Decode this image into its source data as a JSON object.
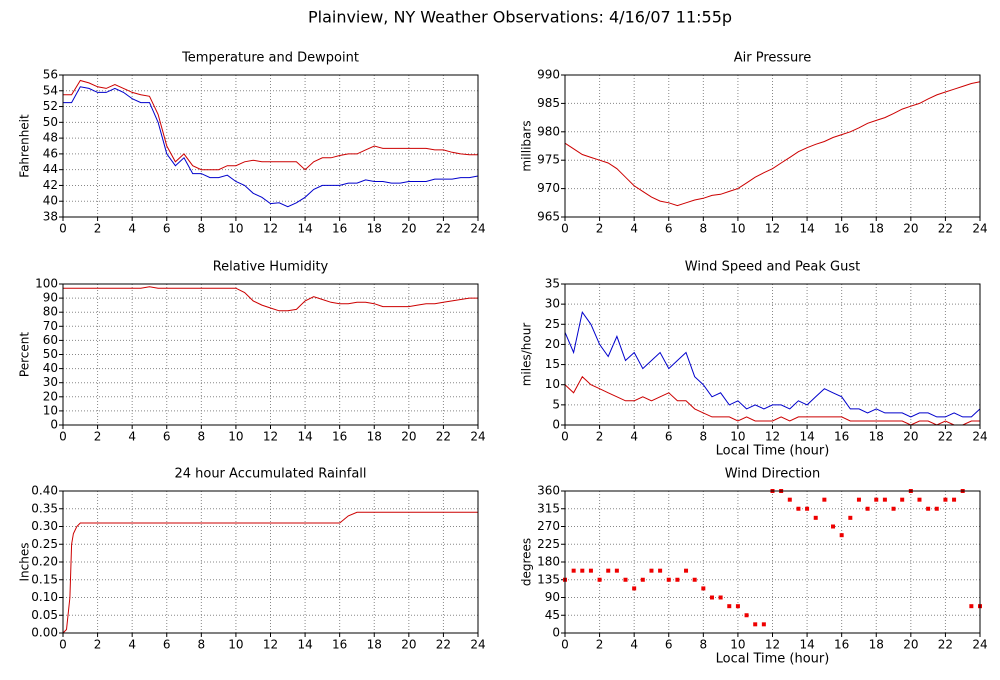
{
  "title": "Plainview, NY Weather Observations: 4/16/07 11:55p",
  "chart_data": [
    {
      "type": "line",
      "title": "Temperature and Dewpoint",
      "ylabel": "Fahrenheit",
      "x": [
        0,
        0.5,
        1,
        1.5,
        2,
        2.5,
        3,
        3.5,
        4,
        4.5,
        5,
        5.5,
        6,
        6.5,
        7,
        7.5,
        8,
        8.5,
        9,
        9.5,
        10,
        10.5,
        11,
        11.5,
        12,
        12.5,
        13,
        13.5,
        14,
        14.5,
        15,
        15.5,
        16,
        16.5,
        17,
        17.5,
        18,
        18.5,
        19,
        19.5,
        20,
        20.5,
        21,
        21.5,
        22,
        22.5,
        23,
        23.5,
        24
      ],
      "series": [
        {
          "color": "#cc0000",
          "values": [
            53.5,
            53.5,
            55.3,
            55,
            54.5,
            54.3,
            54.8,
            54.3,
            53.8,
            53.5,
            53.3,
            51,
            47,
            45,
            46,
            44.5,
            44,
            44,
            44,
            44.5,
            44.5,
            45,
            45.2,
            45,
            45,
            45,
            45,
            45,
            44,
            45,
            45.5,
            45.5,
            45.8,
            46,
            46,
            46.5,
            47,
            46.7,
            46.7,
            46.7,
            46.7,
            46.7,
            46.7,
            46.5,
            46.5,
            46.2,
            46,
            45.9,
            45.9
          ]
        },
        {
          "color": "#0000cc",
          "values": [
            52.5,
            52.5,
            54.5,
            54.3,
            53.8,
            53.8,
            54.3,
            53.8,
            53,
            52.5,
            52.5,
            50,
            46,
            44.5,
            45.5,
            43.5,
            43.5,
            43,
            43,
            43.3,
            42.5,
            42,
            41,
            40.5,
            39.7,
            39.8,
            39.3,
            39.8,
            40.5,
            41.5,
            42,
            42,
            42,
            42.3,
            42.3,
            42.7,
            42.5,
            42.5,
            42.3,
            42.3,
            42.5,
            42.5,
            42.5,
            42.8,
            42.8,
            42.8,
            43,
            43,
            43.2
          ]
        }
      ],
      "xlim": [
        0,
        24
      ],
      "xticks": [
        0,
        2,
        4,
        6,
        8,
        10,
        12,
        14,
        16,
        18,
        20,
        22,
        24
      ],
      "ylim": [
        38,
        56
      ],
      "yticks": [
        38,
        40,
        42,
        44,
        46,
        48,
        50,
        52,
        54,
        56
      ],
      "grid": true
    },
    {
      "type": "line",
      "title": "Air Pressure",
      "ylabel": "millibars",
      "x": [
        0,
        0.5,
        1,
        1.5,
        2,
        2.5,
        3,
        3.5,
        4,
        4.5,
        5,
        5.5,
        6,
        6.5,
        7,
        7.5,
        8,
        8.5,
        9,
        9.5,
        10,
        10.5,
        11,
        11.5,
        12,
        12.5,
        13,
        13.5,
        14,
        14.5,
        15,
        15.5,
        16,
        16.5,
        17,
        17.5,
        18,
        18.5,
        19,
        19.5,
        20,
        20.5,
        21,
        21.5,
        22,
        22.5,
        23,
        23.5,
        24
      ],
      "series": [
        {
          "color": "#cc0000",
          "values": [
            978,
            977,
            976,
            975.5,
            975,
            974.5,
            973.5,
            972,
            970.5,
            969.5,
            968.5,
            967.8,
            967.5,
            967,
            967.5,
            968,
            968.3,
            968.8,
            969,
            969.5,
            970,
            971,
            972,
            972.8,
            973.5,
            974.5,
            975.5,
            976.5,
            977.2,
            977.8,
            978.3,
            979,
            979.5,
            980,
            980.7,
            981.5,
            982,
            982.5,
            983.2,
            984,
            984.5,
            985,
            985.8,
            986.5,
            987,
            987.5,
            988,
            988.5,
            988.8
          ]
        }
      ],
      "xlim": [
        0,
        24
      ],
      "xticks": [
        0,
        2,
        4,
        6,
        8,
        10,
        12,
        14,
        16,
        18,
        20,
        22,
        24
      ],
      "ylim": [
        965,
        990
      ],
      "yticks": [
        965,
        970,
        975,
        980,
        985,
        990
      ],
      "grid": true
    },
    {
      "type": "line",
      "title": "Relative Humidity",
      "ylabel": "Percent",
      "x": [
        0,
        0.5,
        1,
        1.5,
        2,
        2.5,
        3,
        3.5,
        4,
        4.5,
        5,
        5.5,
        6,
        6.5,
        7,
        7.5,
        8,
        8.5,
        9,
        9.5,
        10,
        10.5,
        11,
        11.5,
        12,
        12.5,
        13,
        13.5,
        14,
        14.5,
        15,
        15.5,
        16,
        16.5,
        17,
        17.5,
        18,
        18.5,
        19,
        19.5,
        20,
        20.5,
        21,
        21.5,
        22,
        22.5,
        23,
        23.5,
        24
      ],
      "series": [
        {
          "color": "#cc0000",
          "values": [
            97,
            97,
            97,
            97,
            97,
            97,
            97,
            97,
            97,
            97,
            98,
            97,
            97,
            97,
            97,
            97,
            97,
            97,
            97,
            97,
            97,
            94,
            88,
            85,
            83,
            81,
            81,
            82,
            88,
            91,
            89,
            87,
            86,
            86,
            87,
            87,
            86,
            84,
            84,
            84,
            84,
            85,
            86,
            86,
            87,
            88,
            89,
            90,
            90
          ]
        }
      ],
      "xlim": [
        0,
        24
      ],
      "xticks": [
        0,
        2,
        4,
        6,
        8,
        10,
        12,
        14,
        16,
        18,
        20,
        22,
        24
      ],
      "ylim": [
        0,
        100
      ],
      "yticks": [
        0,
        10,
        20,
        30,
        40,
        50,
        60,
        70,
        80,
        90,
        100
      ],
      "grid": true
    },
    {
      "type": "line",
      "title": "Wind Speed and Peak Gust",
      "ylabel": "miles/hour",
      "xlabel": "Local Time (hour)",
      "x": [
        0,
        0.5,
        1,
        1.5,
        2,
        2.5,
        3,
        3.5,
        4,
        4.5,
        5,
        5.5,
        6,
        6.5,
        7,
        7.5,
        8,
        8.5,
        9,
        9.5,
        10,
        10.5,
        11,
        11.5,
        12,
        12.5,
        13,
        13.5,
        14,
        14.5,
        15,
        15.5,
        16,
        16.5,
        17,
        17.5,
        18,
        18.5,
        19,
        19.5,
        20,
        20.5,
        21,
        21.5,
        22,
        22.5,
        23,
        23.5,
        24
      ],
      "series": [
        {
          "color": "#0000cc",
          "values": [
            23,
            18,
            28,
            25,
            20,
            17,
            22,
            16,
            18,
            14,
            16,
            18,
            14,
            16,
            18,
            12,
            10,
            7,
            8,
            5,
            6,
            4,
            5,
            4,
            5,
            5,
            4,
            6,
            5,
            7,
            9,
            8,
            7,
            4,
            4,
            3,
            4,
            3,
            3,
            3,
            2,
            3,
            3,
            2,
            2,
            3,
            2,
            2,
            4
          ]
        },
        {
          "color": "#cc0000",
          "values": [
            10,
            8,
            12,
            10,
            9,
            8,
            7,
            6,
            6,
            7,
            6,
            7,
            8,
            6,
            6,
            4,
            3,
            2,
            2,
            2,
            1,
            2,
            1,
            1,
            1,
            2,
            1,
            2,
            2,
            2,
            2,
            2,
            2,
            1,
            1,
            1,
            1,
            1,
            1,
            1,
            0,
            1,
            1,
            0,
            1,
            0,
            0,
            1,
            1
          ]
        }
      ],
      "xlim": [
        0,
        24
      ],
      "xticks": [
        0,
        2,
        4,
        6,
        8,
        10,
        12,
        14,
        16,
        18,
        20,
        22,
        24
      ],
      "ylim": [
        0,
        35
      ],
      "yticks": [
        0,
        5,
        10,
        15,
        20,
        25,
        30,
        35
      ],
      "grid": true
    },
    {
      "type": "line",
      "title": "24 hour Accumulated Rainfall",
      "ylabel": "Inches",
      "x": [
        0,
        0.2,
        0.4,
        0.5,
        0.6,
        0.7,
        0.8,
        1,
        16,
        16.5,
        17,
        24
      ],
      "series": [
        {
          "color": "#cc0000",
          "values": [
            0,
            0.01,
            0.1,
            0.25,
            0.28,
            0.29,
            0.3,
            0.31,
            0.31,
            0.33,
            0.34,
            0.34
          ]
        }
      ],
      "xlim": [
        0,
        24
      ],
      "xticks": [
        0,
        2,
        4,
        6,
        8,
        10,
        12,
        14,
        16,
        18,
        20,
        22,
        24
      ],
      "ylim": [
        0,
        0.4
      ],
      "yticks": [
        {
          "value": 0,
          "label": "0.00"
        },
        {
          "value": 0.05,
          "label": "0.05"
        },
        {
          "value": 0.1,
          "label": "0.10"
        },
        {
          "value": 0.15,
          "label": "0.15"
        },
        {
          "value": 0.2,
          "label": "0.20"
        },
        {
          "value": 0.25,
          "label": "0.25"
        },
        {
          "value": 0.3,
          "label": "0.30"
        },
        {
          "value": 0.35,
          "label": "0.35"
        },
        {
          "value": 0.4,
          "label": "0.40"
        }
      ],
      "grid": true
    },
    {
      "type": "scatter",
      "title": "Wind Direction",
      "ylabel": "degrees",
      "xlabel": "Local Time (hour)",
      "x": [
        0,
        0.5,
        1,
        1.5,
        2,
        2.5,
        3,
        3.5,
        4,
        4.5,
        5,
        5.5,
        6,
        6.5,
        7,
        7.5,
        8,
        8.5,
        9,
        9.5,
        10,
        10.5,
        11,
        11.5,
        12,
        12.5,
        13,
        13.5,
        14,
        14.5,
        15,
        15.5,
        16,
        16.5,
        17,
        17.5,
        18,
        18.5,
        19,
        19.5,
        20,
        20.5,
        21,
        21.5,
        22,
        22.5,
        23,
        23.5,
        24
      ],
      "series": [
        {
          "color": "#ee0000",
          "values": [
            135,
            158,
            158,
            158,
            135,
            158,
            158,
            135,
            113,
            135,
            158,
            158,
            135,
            135,
            158,
            135,
            113,
            90,
            90,
            68,
            68,
            45,
            22,
            22,
            360,
            360,
            338,
            315,
            315,
            292,
            338,
            270,
            248,
            292,
            338,
            315,
            338,
            338,
            315,
            338,
            360,
            338,
            315,
            315,
            338,
            338,
            360,
            68,
            68
          ]
        }
      ],
      "xlim": [
        0,
        24
      ],
      "xticks": [
        0,
        2,
        4,
        6,
        8,
        10,
        12,
        14,
        16,
        18,
        20,
        22,
        24
      ],
      "ylim": [
        0,
        360
      ],
      "yticks": [
        0,
        45,
        90,
        135,
        180,
        225,
        270,
        315,
        360
      ],
      "grid": true
    }
  ]
}
